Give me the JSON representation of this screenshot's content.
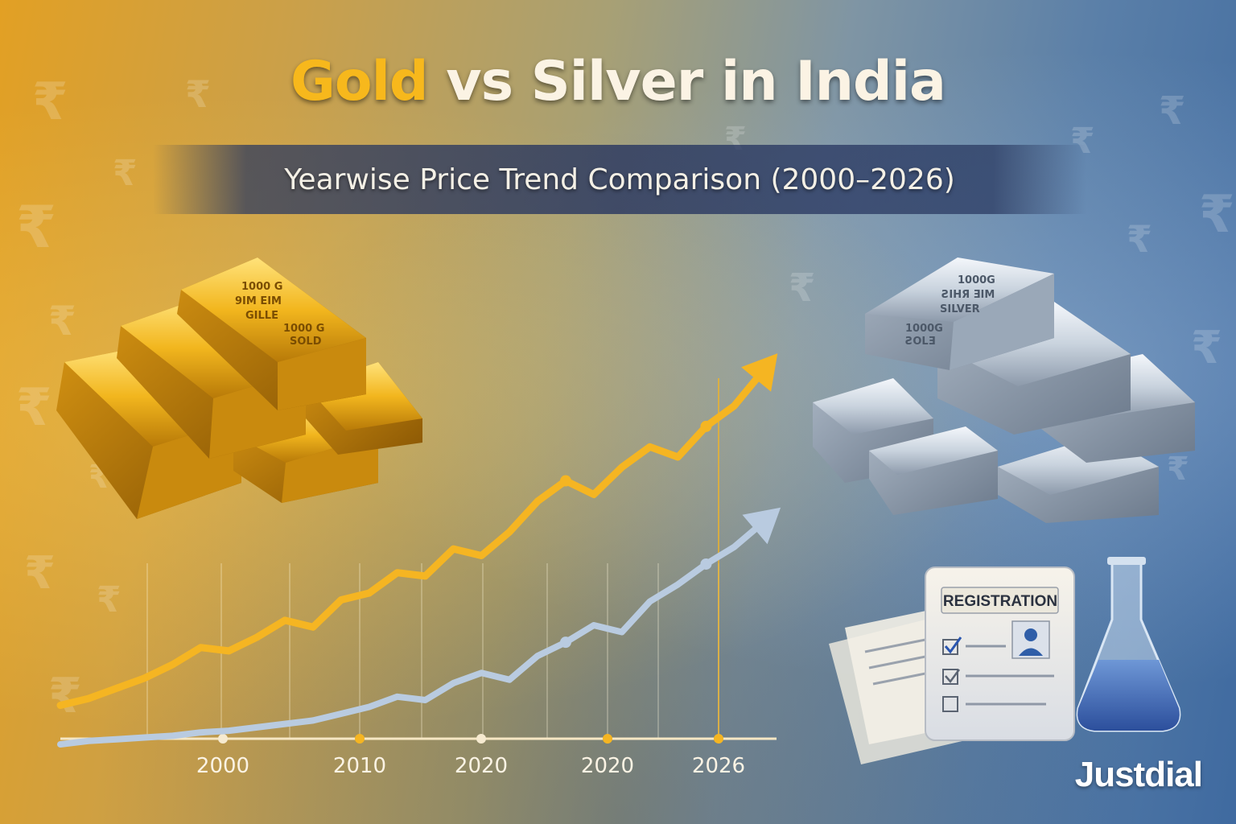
{
  "header": {
    "title_gold": "Gold",
    "title_rest": " vs Silver in India",
    "subtitle": "Yearwise Price Trend Comparison (2000–2026)"
  },
  "background": {
    "rupee_glyph": "₹",
    "left_color": "#e2a024",
    "right_color": "#3f6aa0"
  },
  "gold_bars": {
    "labels": [
      "1000 G",
      "9IM EIM",
      "GILLE",
      "1000 G",
      "SOLD"
    ]
  },
  "silver_bars": {
    "labels": [
      "1000G",
      "ƧIHЯ ƎIM",
      "SILVER",
      "1000G",
      "ƧOLƎ"
    ]
  },
  "registration_card": {
    "label": "REGISTRATION",
    "icon": "document-icon",
    "flask_icon": "flask-icon"
  },
  "brand": {
    "name": "Justdial"
  },
  "colors": {
    "gold": "#f5b522",
    "silver": "#b9cbe0",
    "accent_title": "#f7b81c"
  },
  "chart_data": {
    "type": "line",
    "title": "Yearwise Price Trend Comparison (2000–2026)",
    "x_tick_labels": [
      "2000",
      "2010",
      "2020",
      "2020",
      "2026"
    ],
    "x": [
      0,
      1,
      2,
      3,
      4,
      5,
      6,
      7,
      8,
      9,
      10,
      11,
      12,
      13,
      14,
      15,
      16,
      17,
      18,
      19,
      20,
      21,
      22,
      23,
      24,
      25
    ],
    "series": [
      {
        "values": [
          2,
          4,
          7,
          10,
          14,
          19,
          18,
          22,
          27,
          25,
          33,
          35,
          41,
          40,
          48,
          46,
          53,
          62,
          68,
          64,
          72,
          78,
          75,
          84,
          90,
          100
        ]
      },
      {
        "values": [
          0,
          1,
          1.5,
          2,
          2.5,
          3.5,
          4,
          5,
          6,
          7,
          9,
          11,
          14,
          13,
          18,
          21,
          19,
          26,
          30,
          35,
          33,
          42,
          47,
          53,
          58,
          65
        ]
      }
    ],
    "ylim": [
      0,
      110
    ],
    "grid": true,
    "legend": "none"
  }
}
